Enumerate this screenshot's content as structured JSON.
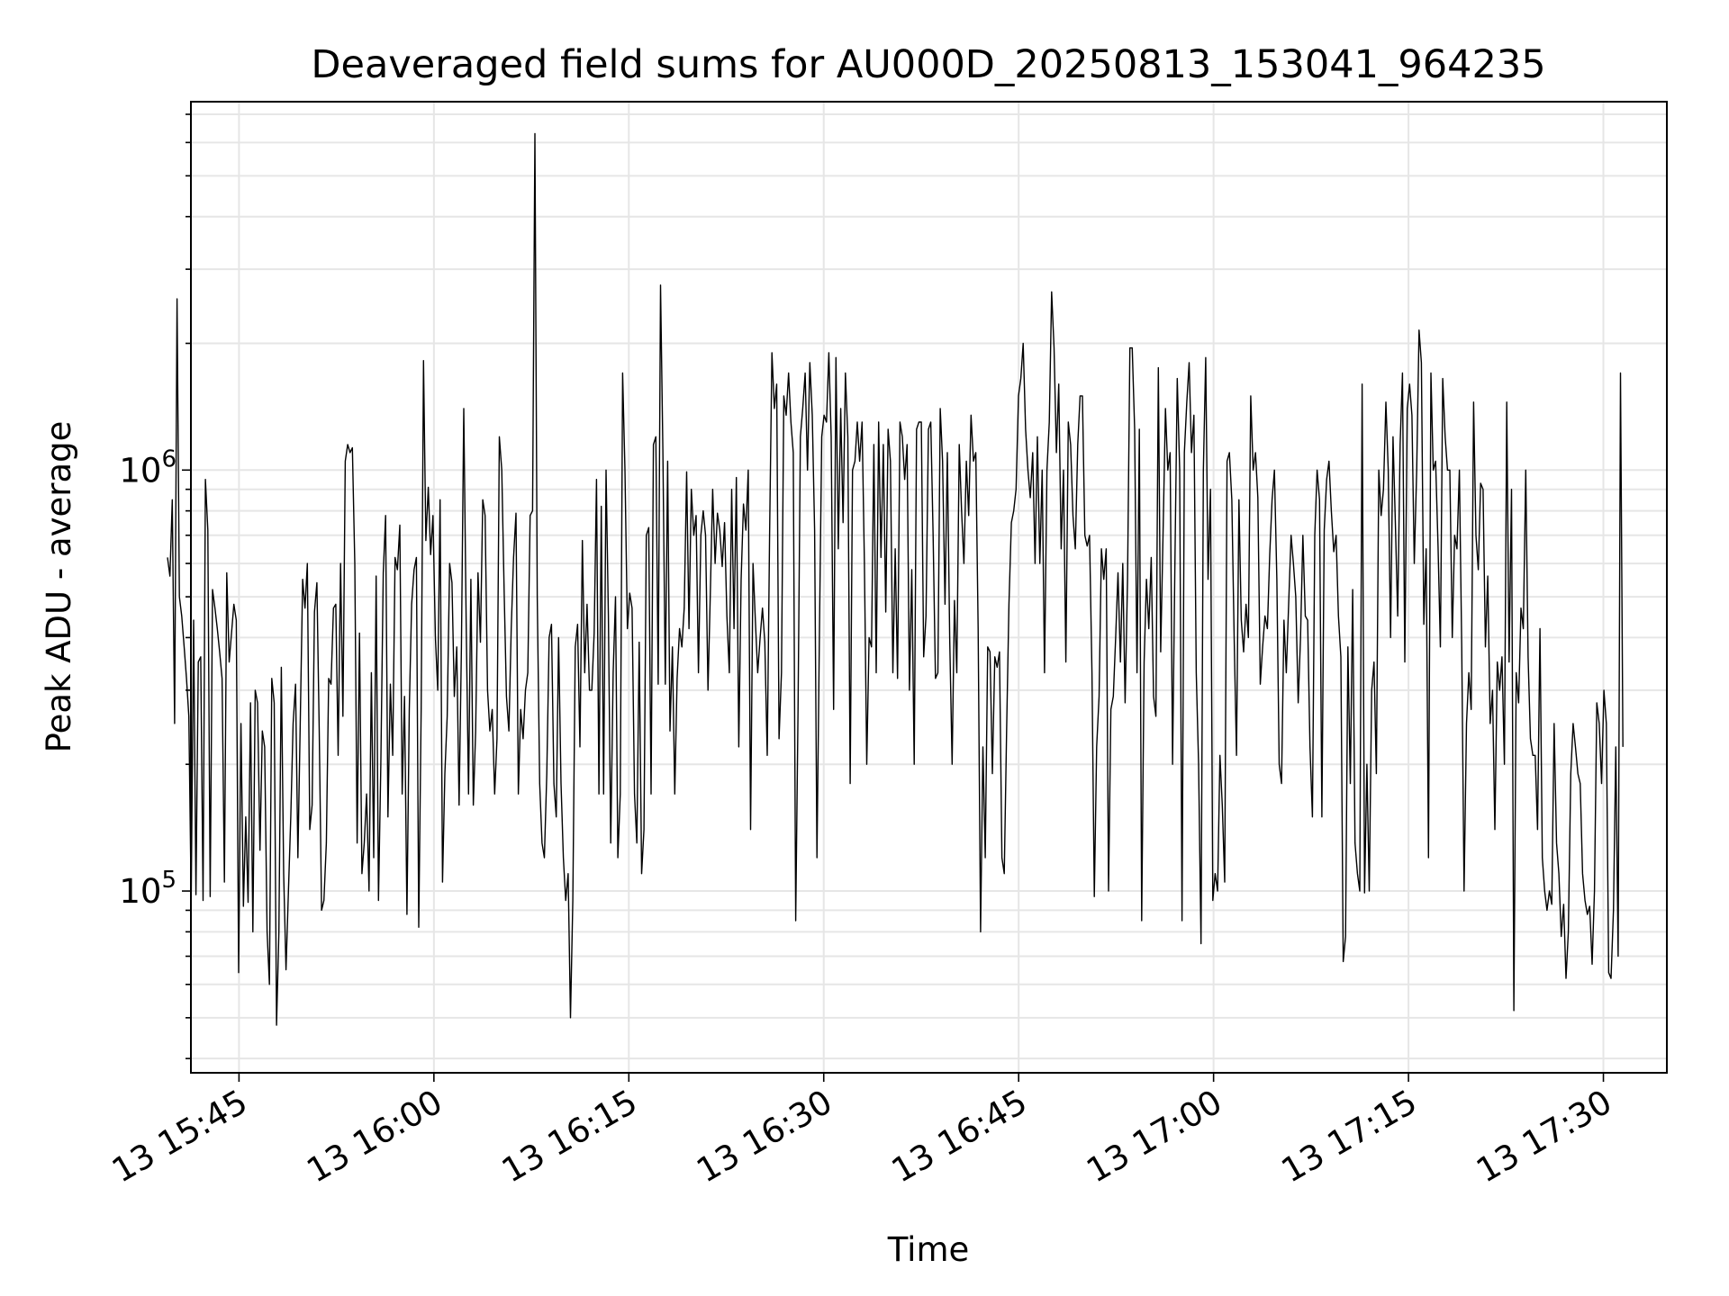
{
  "chart_data": {
    "type": "line",
    "title": "Deaveraged field sums for AU000D_20250813_153041_964235",
    "xlabel": "Time",
    "ylabel": "Peak ADU - average",
    "yscale": "log",
    "ylim": [
      37000,
      7500000
    ],
    "xlim_minutes_label": [
      "13 15:40",
      "13 17:32"
    ],
    "x_ticks": [
      "13 15:45",
      "13 16:00",
      "13 16:15",
      "13 16:30",
      "13 16:45",
      "13 17:00",
      "13 17:15",
      "13 17:30"
    ],
    "y_ticks": [
      {
        "base": "10",
        "exp": "5",
        "value": 100000
      },
      {
        "base": "10",
        "exp": "6",
        "value": 1000000
      }
    ],
    "grid": true,
    "line_color": "#000000",
    "grid_color": "#e6e6e6",
    "series": [
      {
        "x_start": "2025-08-13 15:39:30",
        "x_end": "2025-08-13 17:31:30",
        "values": [
          620000,
          560000,
          850000,
          250000,
          2550000,
          500000,
          450000,
          380000,
          320000,
          260000,
          95000,
          440000,
          98000,
          350000,
          360000,
          95000,
          950000,
          720000,
          97000,
          520000,
          470000,
          420000,
          370000,
          320000,
          105000,
          570000,
          350000,
          410000,
          480000,
          440000,
          64000,
          250000,
          92000,
          150000,
          94000,
          280000,
          80000,
          300000,
          280000,
          125000,
          240000,
          220000,
          80000,
          60000,
          320000,
          280000,
          48000,
          80000,
          340000,
          110000,
          65000,
          100000,
          150000,
          250000,
          310000,
          120000,
          250000,
          550000,
          470000,
          600000,
          140000,
          160000,
          460000,
          540000,
          240000,
          90000,
          95000,
          130000,
          320000,
          310000,
          470000,
          480000,
          210000,
          600000,
          260000,
          1050000,
          1150000,
          1100000,
          1130000,
          600000,
          130000,
          410000,
          110000,
          130000,
          170000,
          100000,
          330000,
          120000,
          560000,
          95000,
          200000,
          570000,
          780000,
          150000,
          310000,
          210000,
          620000,
          580000,
          740000,
          170000,
          290000,
          88000,
          270000,
          480000,
          580000,
          620000,
          82000,
          270000,
          1820000,
          680000,
          910000,
          630000,
          780000,
          400000,
          300000,
          850000,
          105000,
          190000,
          260000,
          600000,
          540000,
          290000,
          380000,
          160000,
          380000,
          1400000,
          430000,
          170000,
          550000,
          160000,
          240000,
          570000,
          390000,
          850000,
          780000,
          300000,
          240000,
          270000,
          170000,
          230000,
          1200000,
          1000000,
          520000,
          290000,
          240000,
          420000,
          620000,
          790000,
          170000,
          270000,
          230000,
          300000,
          330000,
          780000,
          800000,
          6300000,
          500000,
          180000,
          130000,
          120000,
          190000,
          400000,
          430000,
          180000,
          150000,
          400000,
          180000,
          120000,
          95000,
          110000,
          50000,
          95000,
          380000,
          430000,
          220000,
          680000,
          330000,
          480000,
          300000,
          300000,
          410000,
          950000,
          170000,
          820000,
          170000,
          1000000,
          450000,
          130000,
          330000,
          500000,
          120000,
          170000,
          1700000,
          1000000,
          420000,
          510000,
          470000,
          170000,
          130000,
          390000,
          110000,
          140000,
          700000,
          730000,
          170000,
          1150000,
          1200000,
          310000,
          2750000,
          1120000,
          310000,
          1050000,
          240000,
          380000,
          170000,
          320000,
          420000,
          380000,
          470000,
          990000,
          420000,
          900000,
          700000,
          780000,
          330000,
          700000,
          800000,
          700000,
          300000,
          510000,
          900000,
          600000,
          790000,
          720000,
          590000,
          750000,
          450000,
          330000,
          900000,
          420000,
          960000,
          220000,
          550000,
          830000,
          720000,
          1000000,
          140000,
          600000,
          440000,
          330000,
          400000,
          470000,
          390000,
          210000,
          700000,
          1900000,
          1400000,
          1600000,
          230000,
          330000,
          1500000,
          1350000,
          1700000,
          1300000,
          1100000,
          85000,
          270000,
          1200000,
          1400000,
          1700000,
          1000000,
          1800000,
          1350000,
          720000,
          120000,
          400000,
          1200000,
          1350000,
          1300000,
          1900000,
          1200000,
          270000,
          1850000,
          650000,
          1400000,
          750000,
          1700000,
          1200000,
          180000,
          1000000,
          1050000,
          1300000,
          1050000,
          1300000,
          600000,
          200000,
          400000,
          380000,
          1150000,
          330000,
          1300000,
          620000,
          1150000,
          460000,
          1250000,
          1050000,
          330000,
          650000,
          320000,
          1300000,
          1200000,
          950000,
          1150000,
          300000,
          580000,
          200000,
          1250000,
          1300000,
          1300000,
          360000,
          450000,
          1250000,
          1300000,
          700000,
          320000,
          330000,
          1400000,
          1050000,
          480000,
          1100000,
          400000,
          200000,
          490000,
          330000,
          1150000,
          800000,
          600000,
          1050000,
          780000,
          1350000,
          1050000,
          1100000,
          420000,
          80000,
          220000,
          120000,
          380000,
          370000,
          190000,
          360000,
          340000,
          370000,
          120000,
          110000,
          240000,
          480000,
          750000,
          800000,
          900000,
          1500000,
          1650000,
          2000000,
          1250000,
          1000000,
          860000,
          1100000,
          600000,
          1200000,
          600000,
          1000000,
          330000,
          1000000,
          1300000,
          2650000,
          1950000,
          1100000,
          1600000,
          650000,
          1000000,
          350000,
          1300000,
          1150000,
          780000,
          650000,
          1150000,
          1500000,
          1500000,
          700000,
          660000,
          700000,
          330000,
          97000,
          220000,
          290000,
          650000,
          550000,
          650000,
          100000,
          270000,
          290000,
          400000,
          570000,
          350000,
          600000,
          280000,
          550000,
          1950000,
          1950000,
          1250000,
          330000,
          1250000,
          85000,
          350000,
          550000,
          420000,
          620000,
          290000,
          260000,
          1750000,
          370000,
          700000,
          1400000,
          1000000,
          1100000,
          200000,
          600000,
          1650000,
          1000000,
          85000,
          1100000,
          1450000,
          1800000,
          1100000,
          1350000,
          330000,
          200000,
          75000,
          1000000,
          1850000,
          550000,
          900000,
          95000,
          110000,
          100000,
          210000,
          160000,
          105000,
          1050000,
          1100000,
          850000,
          400000,
          210000,
          850000,
          440000,
          370000,
          480000,
          400000,
          1500000,
          1000000,
          1100000,
          860000,
          310000,
          380000,
          450000,
          420000,
          630000,
          850000,
          1000000,
          550000,
          200000,
          180000,
          440000,
          330000,
          480000,
          700000,
          600000,
          500000,
          280000,
          400000,
          700000,
          450000,
          440000,
          220000,
          150000,
          700000,
          1000000,
          850000,
          150000,
          720000,
          950000,
          1050000,
          800000,
          640000,
          700000,
          450000,
          360000,
          68000,
          78000,
          380000,
          180000,
          520000,
          130000,
          110000,
          100000,
          1600000,
          99000,
          200000,
          100000,
          300000,
          350000,
          190000,
          1000000,
          780000,
          900000,
          1450000,
          1000000,
          400000,
          1200000,
          750000,
          450000,
          1150000,
          1700000,
          350000,
          1400000,
          1600000,
          1350000,
          600000,
          1000000,
          2150000,
          1800000,
          430000,
          650000,
          120000,
          1700000,
          1000000,
          1050000,
          660000,
          380000,
          1650000,
          1200000,
          1000000,
          1000000,
          400000,
          700000,
          650000,
          1000000,
          380000,
          100000,
          250000,
          330000,
          270000,
          1450000,
          700000,
          580000,
          930000,
          900000,
          380000,
          560000,
          250000,
          300000,
          140000,
          350000,
          300000,
          360000,
          200000,
          1450000,
          350000,
          900000,
          52000,
          330000,
          280000,
          470000,
          420000,
          1000000,
          360000,
          230000,
          210000,
          210000,
          140000,
          420000,
          120000,
          100000,
          90000,
          100000,
          93000,
          250000,
          130000,
          110000,
          78000,
          93000,
          62000,
          80000,
          190000,
          250000,
          220000,
          190000,
          180000,
          110000,
          95000,
          88000,
          92000,
          67000,
          100000,
          280000,
          250000,
          180000,
          300000,
          250000,
          64000,
          62000,
          90000,
          220000,
          70000,
          1700000,
          220000
        ]
      }
    ]
  }
}
